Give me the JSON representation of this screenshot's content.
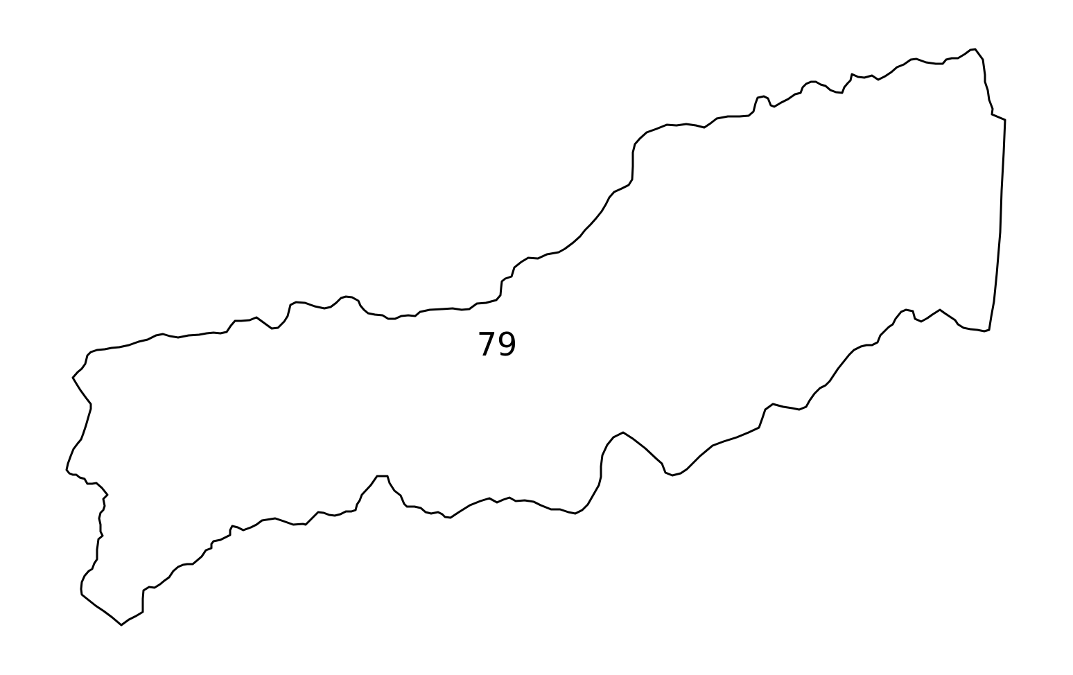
{
  "map": {
    "regions": [
      {
        "label": "79",
        "outline_color": "#000000",
        "fill_color": "#ffffff"
      }
    ]
  }
}
